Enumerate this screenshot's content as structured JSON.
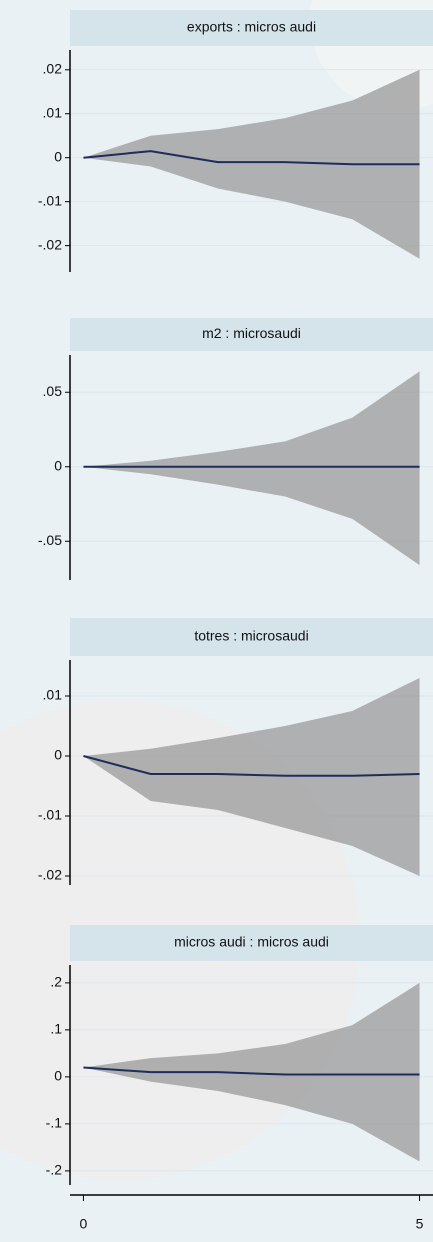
{
  "chart_data": [
    {
      "type": "line",
      "title": "exports : micros audi",
      "x": [
        0,
        1,
        2,
        3,
        4,
        5
      ],
      "values": [
        0,
        0.0015,
        -0.001,
        -0.001,
        -0.0015,
        -0.0015
      ],
      "upper": [
        0,
        0.005,
        0.0065,
        0.009,
        0.013,
        0.02
      ],
      "lower": [
        0,
        -0.002,
        -0.007,
        -0.01,
        -0.014,
        -0.023
      ],
      "color": "#1f2d5c",
      "band_color": "#9a9a9a",
      "xlim": [
        -0.2,
        5.2
      ],
      "ylim": [
        -0.026,
        0.0245
      ],
      "yticks": [
        {
          "value": 0.02,
          "label": ".02"
        },
        {
          "value": 0.01,
          "label": ".01"
        },
        0,
        {
          "value": -0.01,
          "label": "-.01"
        },
        {
          "value": -0.02,
          "label": "-.02"
        }
      ],
      "grid": true
    },
    {
      "type": "line",
      "title": "m2 : microsaudi",
      "x": [
        0,
        1,
        2,
        3,
        4,
        5
      ],
      "values": [
        0,
        0,
        0,
        0,
        0,
        0
      ],
      "upper": [
        0,
        0.004,
        0.01,
        0.017,
        0.033,
        0.064
      ],
      "lower": [
        0,
        -0.005,
        -0.012,
        -0.02,
        -0.035,
        -0.066
      ],
      "color": "#1f2d5c",
      "band_color": "#9a9a9a",
      "xlim": [
        -0.2,
        5.2
      ],
      "ylim": [
        -0.076,
        0.075
      ],
      "yticks": [
        {
          "value": 0.05,
          "label": ".05"
        },
        0,
        {
          "value": -0.05,
          "label": "-.05"
        }
      ],
      "grid": true
    },
    {
      "type": "line",
      "title": "totres : microsaudi",
      "x": [
        0,
        1,
        2,
        3,
        4,
        5
      ],
      "values": [
        0,
        -0.003,
        -0.003,
        -0.0033,
        -0.0033,
        -0.003
      ],
      "upper": [
        0,
        0.0012,
        0.003,
        0.005,
        0.0075,
        0.013
      ],
      "lower": [
        0,
        -0.0075,
        -0.009,
        -0.012,
        -0.015,
        -0.02
      ],
      "color": "#1f2d5c",
      "band_color": "#9a9a9a",
      "xlim": [
        -0.2,
        5.2
      ],
      "ylim": [
        -0.0215,
        0.016
      ],
      "yticks": [
        {
          "value": 0.01,
          "label": ".01"
        },
        0,
        {
          "value": -0.01,
          "label": "-.01"
        },
        {
          "value": -0.02,
          "label": "-.02"
        }
      ],
      "grid": true
    },
    {
      "type": "line",
      "title": "micros audi : micros audi",
      "x": [
        0,
        1,
        2,
        3,
        4,
        5
      ],
      "values": [
        0.02,
        0.01,
        0.01,
        0.005,
        0.005,
        0.005
      ],
      "upper": [
        0.02,
        0.04,
        0.05,
        0.07,
        0.11,
        0.2
      ],
      "lower": [
        0.02,
        -0.01,
        -0.03,
        -0.06,
        -0.1,
        -0.18
      ],
      "color": "#1f2d5c",
      "band_color": "#9a9a9a",
      "xlim": [
        -0.2,
        5.2
      ],
      "ylim": [
        -0.23,
        0.238
      ],
      "yticks": [
        {
          "value": 0.2,
          "label": ".2"
        },
        {
          "value": 0.1,
          "label": ".1"
        },
        0,
        {
          "value": -0.1,
          "label": "-.1"
        },
        {
          "value": -0.2,
          "label": "-.2"
        }
      ],
      "xticks": [
        0,
        5
      ],
      "grid": true
    }
  ]
}
